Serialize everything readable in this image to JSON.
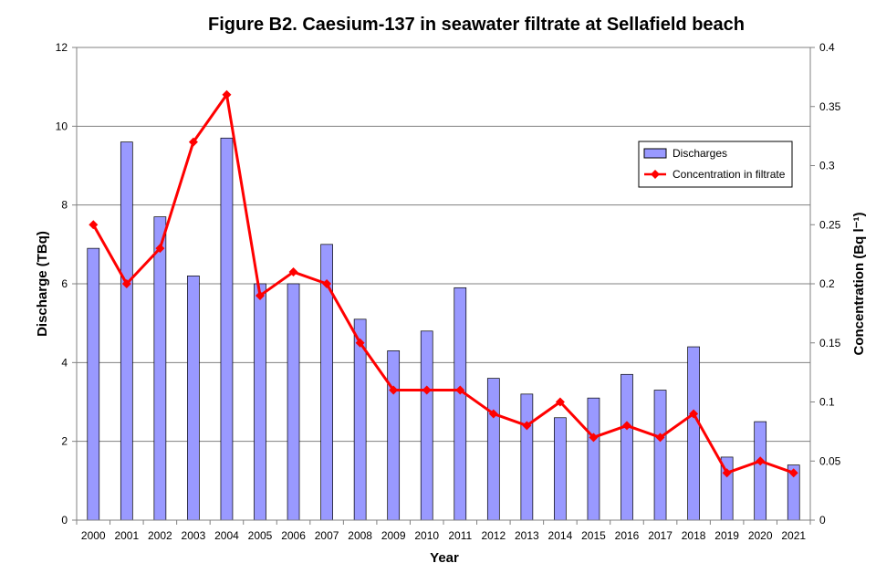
{
  "chart_data": {
    "type": "bar",
    "title": "Figure B2. Caesium-137 in seawater filtrate at Sellafield beach",
    "xlabel": "Year",
    "ylabel": "Discharge (TBq)",
    "y2label": "Concentration (Bq l⁻¹)",
    "categories": [
      "2000",
      "2001",
      "2002",
      "2003",
      "2004",
      "2005",
      "2006",
      "2007",
      "2008",
      "2009",
      "2010",
      "2011",
      "2012",
      "2013",
      "2014",
      "2015",
      "2016",
      "2017",
      "2018",
      "2019",
      "2020",
      "2021"
    ],
    "ylim": [
      0,
      12
    ],
    "yticks": [
      0,
      2,
      4,
      6,
      8,
      10,
      12
    ],
    "y2lim": [
      0,
      0.4
    ],
    "y2ticks": [
      "0",
      "0.05",
      "0.1",
      "0.15",
      "0.2",
      "0.25",
      "0.3",
      "0.35",
      "0.4"
    ],
    "grid": true,
    "legend_position": "upper-right",
    "series": [
      {
        "name": "Discharges",
        "type": "bar",
        "axis": "left",
        "color": "#9999ff",
        "values": [
          6.9,
          9.6,
          7.7,
          6.2,
          9.7,
          6.0,
          6.0,
          7.0,
          5.1,
          4.3,
          4.8,
          5.9,
          3.6,
          3.2,
          2.6,
          3.1,
          3.7,
          3.3,
          4.4,
          1.6,
          2.5,
          1.4
        ]
      },
      {
        "name": "Concentration in filtrate",
        "type": "line",
        "axis": "right",
        "color": "#ff0000",
        "marker": "diamond",
        "values": [
          0.25,
          0.2,
          0.23,
          0.32,
          0.36,
          0.19,
          0.21,
          0.2,
          0.15,
          0.11,
          0.11,
          0.11,
          0.09,
          0.08,
          0.1,
          0.07,
          0.08,
          0.07,
          0.09,
          0.04,
          0.05,
          0.04
        ]
      }
    ]
  }
}
